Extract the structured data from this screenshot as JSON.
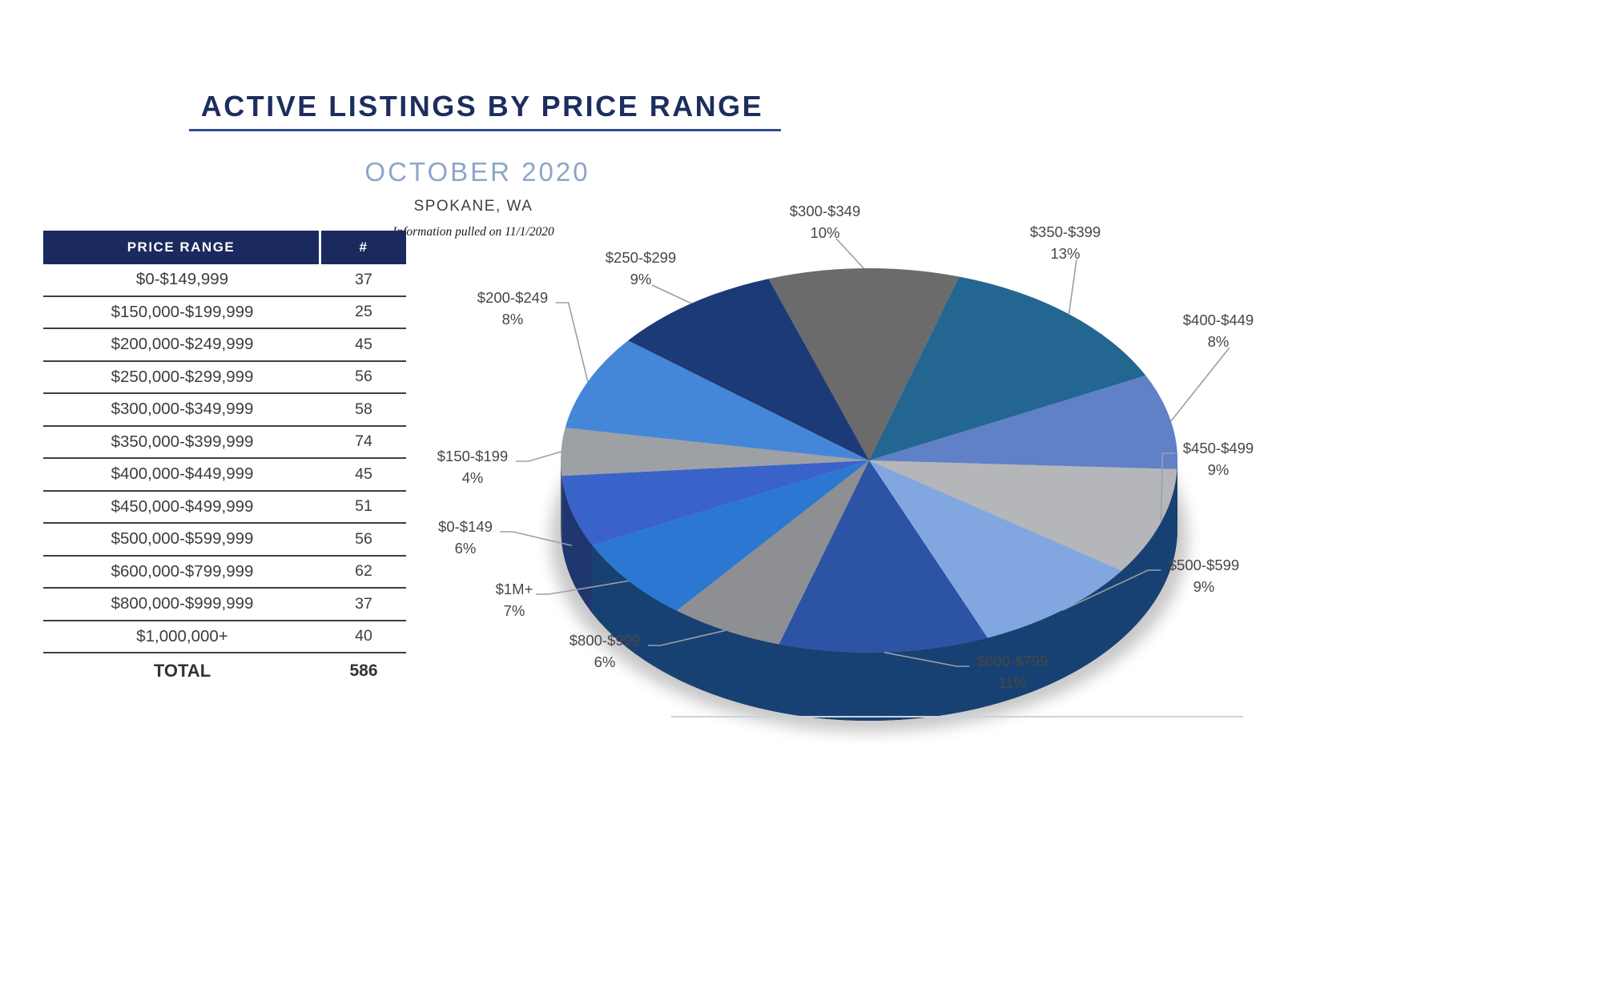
{
  "header": {
    "title": "ACTIVE LISTINGS BY PRICE RANGE",
    "subtitle": "OCTOBER 2020",
    "location": "SPOKANE, WA",
    "note": "Information pulled on 11/1/2020"
  },
  "table": {
    "columns": [
      "PRICE RANGE",
      "#"
    ],
    "rows": [
      {
        "range": "$0-$149,999",
        "count": "37"
      },
      {
        "range": "$150,000-$199,999",
        "count": "25"
      },
      {
        "range": "$200,000-$249,999",
        "count": "45"
      },
      {
        "range": "$250,000-$299,999",
        "count": "56"
      },
      {
        "range": "$300,000-$349,999",
        "count": "58"
      },
      {
        "range": "$350,000-$399,999",
        "count": "74"
      },
      {
        "range": "$400,000-$449,999",
        "count": "45"
      },
      {
        "range": "$450,000-$499,999",
        "count": "51"
      },
      {
        "range": "$500,000-$599,999",
        "count": "56"
      },
      {
        "range": "$600,000-$799,999",
        "count": "62"
      },
      {
        "range": "$800,000-$999,999",
        "count": "37"
      },
      {
        "range": "$1,000,000+",
        "count": "40"
      }
    ],
    "total_label": "TOTAL",
    "total": "586"
  },
  "chart_data": {
    "type": "pie",
    "style": "3d",
    "direction": "clockwise",
    "start_angle_deg": 243.8,
    "labels_position": "outside with leader lines",
    "slices": [
      {
        "label": "$0-$149",
        "pct": 6,
        "count": 37,
        "color": "#3a63c9"
      },
      {
        "label": "$150-$199",
        "pct": 4,
        "count": 25,
        "color": "#9da0a5"
      },
      {
        "label": "$200-$249",
        "pct": 8,
        "count": 45,
        "color": "#4487d8"
      },
      {
        "label": "$250-$299",
        "pct": 9,
        "count": 56,
        "color": "#1d3a78"
      },
      {
        "label": "$300-$349",
        "pct": 10,
        "count": 58,
        "color": "#6b6b6b"
      },
      {
        "label": "$350-$399",
        "pct": 13,
        "count": 74,
        "color": "#236691"
      },
      {
        "label": "$400-$449",
        "pct": 8,
        "count": 45,
        "color": "#6080c8"
      },
      {
        "label": "$450-$499",
        "pct": 9,
        "count": 51,
        "color": "#b4b6ba"
      },
      {
        "label": "$500-$599",
        "pct": 9,
        "count": 56,
        "color": "#82a7e0"
      },
      {
        "label": "$600-$799",
        "pct": 11,
        "count": 62,
        "color": "#2d54a4"
      },
      {
        "label": "$800-$999",
        "pct": 6,
        "count": 37,
        "color": "#8d8f93"
      },
      {
        "label": "$1M+",
        "pct": 7,
        "count": 40,
        "color": "#2c77d1"
      }
    ],
    "colors": {
      "title_navy": "#1c2e5e",
      "subtitle_blue": "#8da5c8",
      "header_navy": "#1b2a5e",
      "leader_gray": "#9aa0a6"
    }
  }
}
